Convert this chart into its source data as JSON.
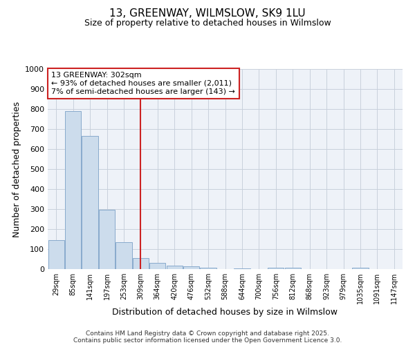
{
  "title": "13, GREENWAY, WILMSLOW, SK9 1LU",
  "subtitle": "Size of property relative to detached houses in Wilmslow",
  "xlabel": "Distribution of detached houses by size in Wilmslow",
  "ylabel": "Number of detached properties",
  "bar_color": "#ccdcec",
  "bar_edge_color": "#88aacc",
  "annotation_box_color": "#cc2222",
  "vline_color": "#cc2222",
  "annotation_text": "13 GREENWAY: 302sqm\n← 93% of detached houses are smaller (2,011)\n7% of semi-detached houses are larger (143) →",
  "vline_pos": 5,
  "categories": [
    "29sqm",
    "85sqm",
    "141sqm",
    "197sqm",
    "253sqm",
    "309sqm",
    "364sqm",
    "420sqm",
    "476sqm",
    "532sqm",
    "588sqm",
    "644sqm",
    "700sqm",
    "756sqm",
    "812sqm",
    "868sqm",
    "923sqm",
    "979sqm",
    "1035sqm",
    "1091sqm",
    "1147sqm"
  ],
  "values": [
    145,
    790,
    665,
    298,
    135,
    55,
    30,
    18,
    15,
    8,
    0,
    5,
    0,
    8,
    6,
    0,
    0,
    0,
    6,
    0,
    0
  ],
  "ylim": [
    0,
    1000
  ],
  "yticks": [
    0,
    100,
    200,
    300,
    400,
    500,
    600,
    700,
    800,
    900,
    1000
  ],
  "figsize": [
    6.0,
    5.0
  ],
  "dpi": 100,
  "footer_line1": "Contains HM Land Registry data © Crown copyright and database right 2025.",
  "footer_line2": "Contains public sector information licensed under the Open Government Licence 3.0.",
  "bg_color": "#eef2f8",
  "grid_color": "#c8d0dc"
}
